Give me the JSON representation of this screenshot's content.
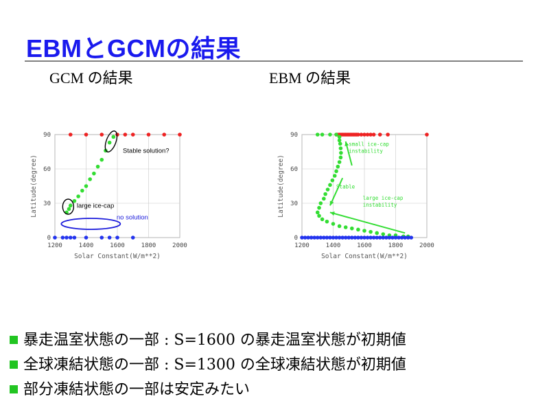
{
  "slide": {
    "title": "EBMとGCMの結果",
    "gcm_heading": "GCM の結果",
    "ebm_heading": "EBM の結果"
  },
  "colors": {
    "title": "#1a1aee",
    "green": "#33dd33",
    "red": "#ee2222",
    "blue": "#2233ee",
    "bullet": "#22c522"
  },
  "bullets": [
    "暴走温室状態の一部 : S=1600 の暴走温室状態が初期値",
    "全球凍結状態の一部 : S=1300 の全球凍結状態が初期値",
    "部分凍結状態の一部は安定みたい"
  ],
  "chart_data": [
    {
      "type": "scatter",
      "xlabel": "Solar Constant(W/m**2)",
      "ylabel": "Latitude(degree)",
      "xlim": [
        1200,
        2000
      ],
      "ylim": [
        0,
        90
      ],
      "xticks": [
        1200,
        1400,
        1600,
        1800,
        2000
      ],
      "yticks": [
        0,
        30,
        60,
        90
      ],
      "grid": true,
      "series": [
        {
          "color": "red",
          "points": [
            [
              1300,
              90
            ],
            [
              1400,
              90
            ],
            [
              1500,
              90
            ],
            [
              1600,
              90
            ],
            [
              1650,
              90
            ],
            [
              1700,
              90
            ],
            [
              1800,
              90
            ],
            [
              1900,
              90
            ],
            [
              2000,
              90
            ]
          ]
        },
        {
          "color": "green",
          "points": [
            [
              1275,
              22
            ],
            [
              1290,
              25
            ],
            [
              1300,
              28
            ],
            [
              1325,
              32
            ],
            [
              1350,
              36
            ],
            [
              1375,
              41
            ],
            [
              1400,
              45
            ],
            [
              1425,
              51
            ],
            [
              1450,
              56
            ],
            [
              1475,
              62
            ],
            [
              1500,
              68
            ],
            [
              1525,
              76
            ],
            [
              1550,
              83
            ],
            [
              1575,
              88
            ]
          ]
        },
        {
          "color": "blue",
          "points": [
            [
              1200,
              0
            ],
            [
              1250,
              0
            ],
            [
              1275,
              0
            ],
            [
              1300,
              0
            ],
            [
              1325,
              0
            ],
            [
              1400,
              0
            ],
            [
              1500,
              0
            ],
            [
              1550,
              0
            ],
            [
              1600,
              0
            ],
            [
              1700,
              0
            ]
          ]
        }
      ],
      "annotations": [
        {
          "text": "Stable solution?"
        },
        {
          "text": "large ice-cap"
        },
        {
          "text": "no solution"
        }
      ]
    },
    {
      "type": "scatter",
      "xlabel": "Solar Constant(W/m**2)",
      "ylabel": "Latitude(degree)",
      "xlim": [
        1200,
        2000
      ],
      "ylim": [
        0,
        90
      ],
      "xticks": [
        1200,
        1400,
        1600,
        1800,
        2000
      ],
      "yticks": [
        0,
        30,
        60,
        90
      ],
      "grid": true,
      "series": [
        {
          "color": "red",
          "points": [
            [
              1420,
              90
            ],
            [
              1430,
              90
            ],
            [
              1440,
              90
            ],
            [
              1450,
              90
            ],
            [
              1460,
              90
            ],
            [
              1470,
              90
            ],
            [
              1480,
              90
            ],
            [
              1490,
              90
            ],
            [
              1500,
              90
            ],
            [
              1510,
              90
            ],
            [
              1520,
              90
            ],
            [
              1530,
              90
            ],
            [
              1540,
              90
            ],
            [
              1550,
              90
            ],
            [
              1560,
              90
            ],
            [
              1580,
              90
            ],
            [
              1600,
              90
            ],
            [
              1620,
              90
            ],
            [
              1640,
              90
            ],
            [
              1660,
              90
            ],
            [
              1700,
              90
            ],
            [
              1750,
              90
            ],
            [
              2000,
              90
            ]
          ]
        },
        {
          "color": "green",
          "points": [
            [
              1300,
              90
            ],
            [
              1330,
              90
            ],
            [
              1380,
              90
            ],
            [
              1420,
              90
            ],
            [
              1440,
              88
            ],
            [
              1440,
              85
            ],
            [
              1445,
              82
            ],
            [
              1448,
              78
            ],
            [
              1450,
              74
            ],
            [
              1448,
              70
            ],
            [
              1440,
              66
            ],
            [
              1430,
              62
            ],
            [
              1420,
              58
            ],
            [
              1410,
              54
            ],
            [
              1395,
              50
            ],
            [
              1380,
              46
            ],
            [
              1365,
              42
            ],
            [
              1350,
              38
            ],
            [
              1340,
              34
            ],
            [
              1320,
              30
            ],
            [
              1310,
              26
            ],
            [
              1300,
              22
            ],
            [
              1310,
              19
            ],
            [
              1330,
              16
            ],
            [
              1360,
              14
            ],
            [
              1400,
              12
            ],
            [
              1440,
              10
            ],
            [
              1480,
              9
            ],
            [
              1520,
              8
            ],
            [
              1560,
              7
            ],
            [
              1600,
              6
            ],
            [
              1640,
              5
            ],
            [
              1680,
              4
            ],
            [
              1720,
              3
            ],
            [
              1760,
              2
            ],
            [
              1800,
              2
            ],
            [
              1850,
              1
            ],
            [
              1880,
              1
            ]
          ]
        },
        {
          "color": "blue",
          "points": [
            [
              1200,
              0
            ],
            [
              1220,
              0
            ],
            [
              1240,
              0
            ],
            [
              1260,
              0
            ],
            [
              1280,
              0
            ],
            [
              1300,
              0
            ],
            [
              1320,
              0
            ],
            [
              1340,
              0
            ],
            [
              1360,
              0
            ],
            [
              1380,
              0
            ],
            [
              1400,
              0
            ],
            [
              1420,
              0
            ],
            [
              1440,
              0
            ],
            [
              1460,
              0
            ],
            [
              1480,
              0
            ],
            [
              1500,
              0
            ],
            [
              1520,
              0
            ],
            [
              1540,
              0
            ],
            [
              1560,
              0
            ],
            [
              1580,
              0
            ],
            [
              1600,
              0
            ],
            [
              1620,
              0
            ],
            [
              1640,
              0
            ],
            [
              1660,
              0
            ],
            [
              1680,
              0
            ],
            [
              1700,
              0
            ],
            [
              1720,
              0
            ],
            [
              1740,
              0
            ],
            [
              1760,
              0
            ],
            [
              1780,
              0
            ],
            [
              1800,
              0
            ],
            [
              1820,
              0
            ],
            [
              1840,
              0
            ],
            [
              1860,
              0
            ],
            [
              1880,
              0
            ],
            [
              1900,
              0
            ]
          ]
        }
      ],
      "annotations": [
        {
          "text": "small ice-cap\ninstability"
        },
        {
          "text": "Stable"
        },
        {
          "text": "large ice-cap\ninstability"
        }
      ]
    }
  ]
}
